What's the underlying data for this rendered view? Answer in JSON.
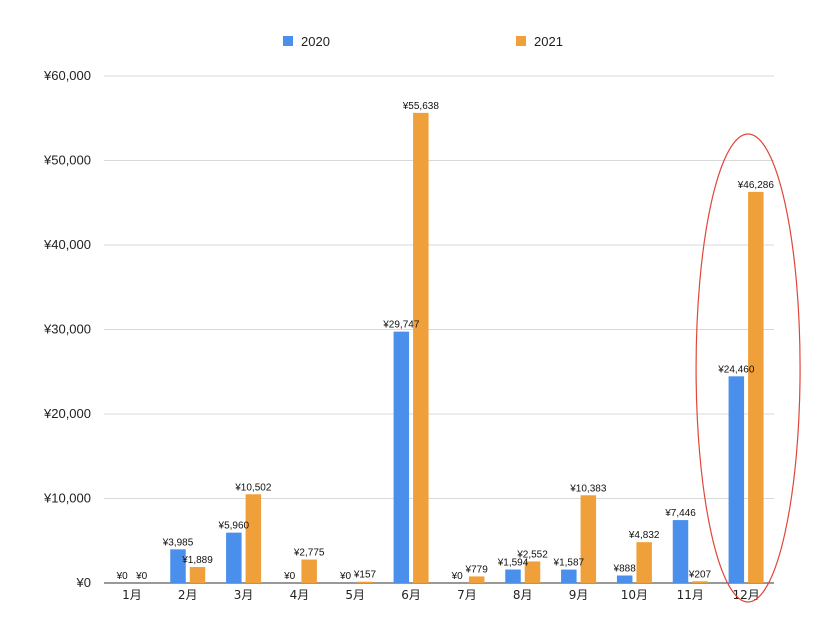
{
  "chart_data": {
    "type": "bar",
    "title": "",
    "xlabel": "",
    "ylabel": "",
    "categories": [
      "1月",
      "2月",
      "3月",
      "4月",
      "5月",
      "6月",
      "7月",
      "8月",
      "9月",
      "10月",
      "11月",
      "12月"
    ],
    "series": [
      {
        "name": "2020",
        "color": "#4a8fec",
        "values": [
          0,
          3985,
          5960,
          0,
          0,
          29747,
          0,
          1594,
          1587,
          888,
          7446,
          24460
        ],
        "labels": [
          "¥0",
          "¥3,985",
          "¥5,960",
          "¥0",
          "¥0",
          "¥29,747",
          "¥0",
          "¥1,594",
          "¥1,587",
          "¥888",
          "¥7,446",
          "¥24,460"
        ]
      },
      {
        "name": "2021",
        "color": "#f0a03a",
        "values": [
          0,
          1889,
          10502,
          2775,
          157,
          55638,
          779,
          2552,
          10383,
          4832,
          207,
          46286
        ],
        "labels": [
          "¥0",
          "¥1,889",
          "¥10,502",
          "¥2,775",
          "¥157",
          "¥55,638",
          "¥779",
          "¥2,552",
          "¥10,383",
          "¥4,832",
          "¥207",
          "¥46,286"
        ]
      }
    ],
    "ylim": [
      0,
      60000
    ],
    "yticks": [
      0,
      10000,
      20000,
      30000,
      40000,
      50000,
      60000
    ],
    "ytick_labels": [
      "¥0",
      "¥10,000",
      "¥20,000",
      "¥30,000",
      "¥40,000",
      "¥50,000",
      "¥60,000"
    ],
    "grid": true,
    "legend_position": "top-center",
    "annotation": {
      "shape": "ellipse",
      "color": "#e0463a",
      "highlights": "12月"
    }
  }
}
